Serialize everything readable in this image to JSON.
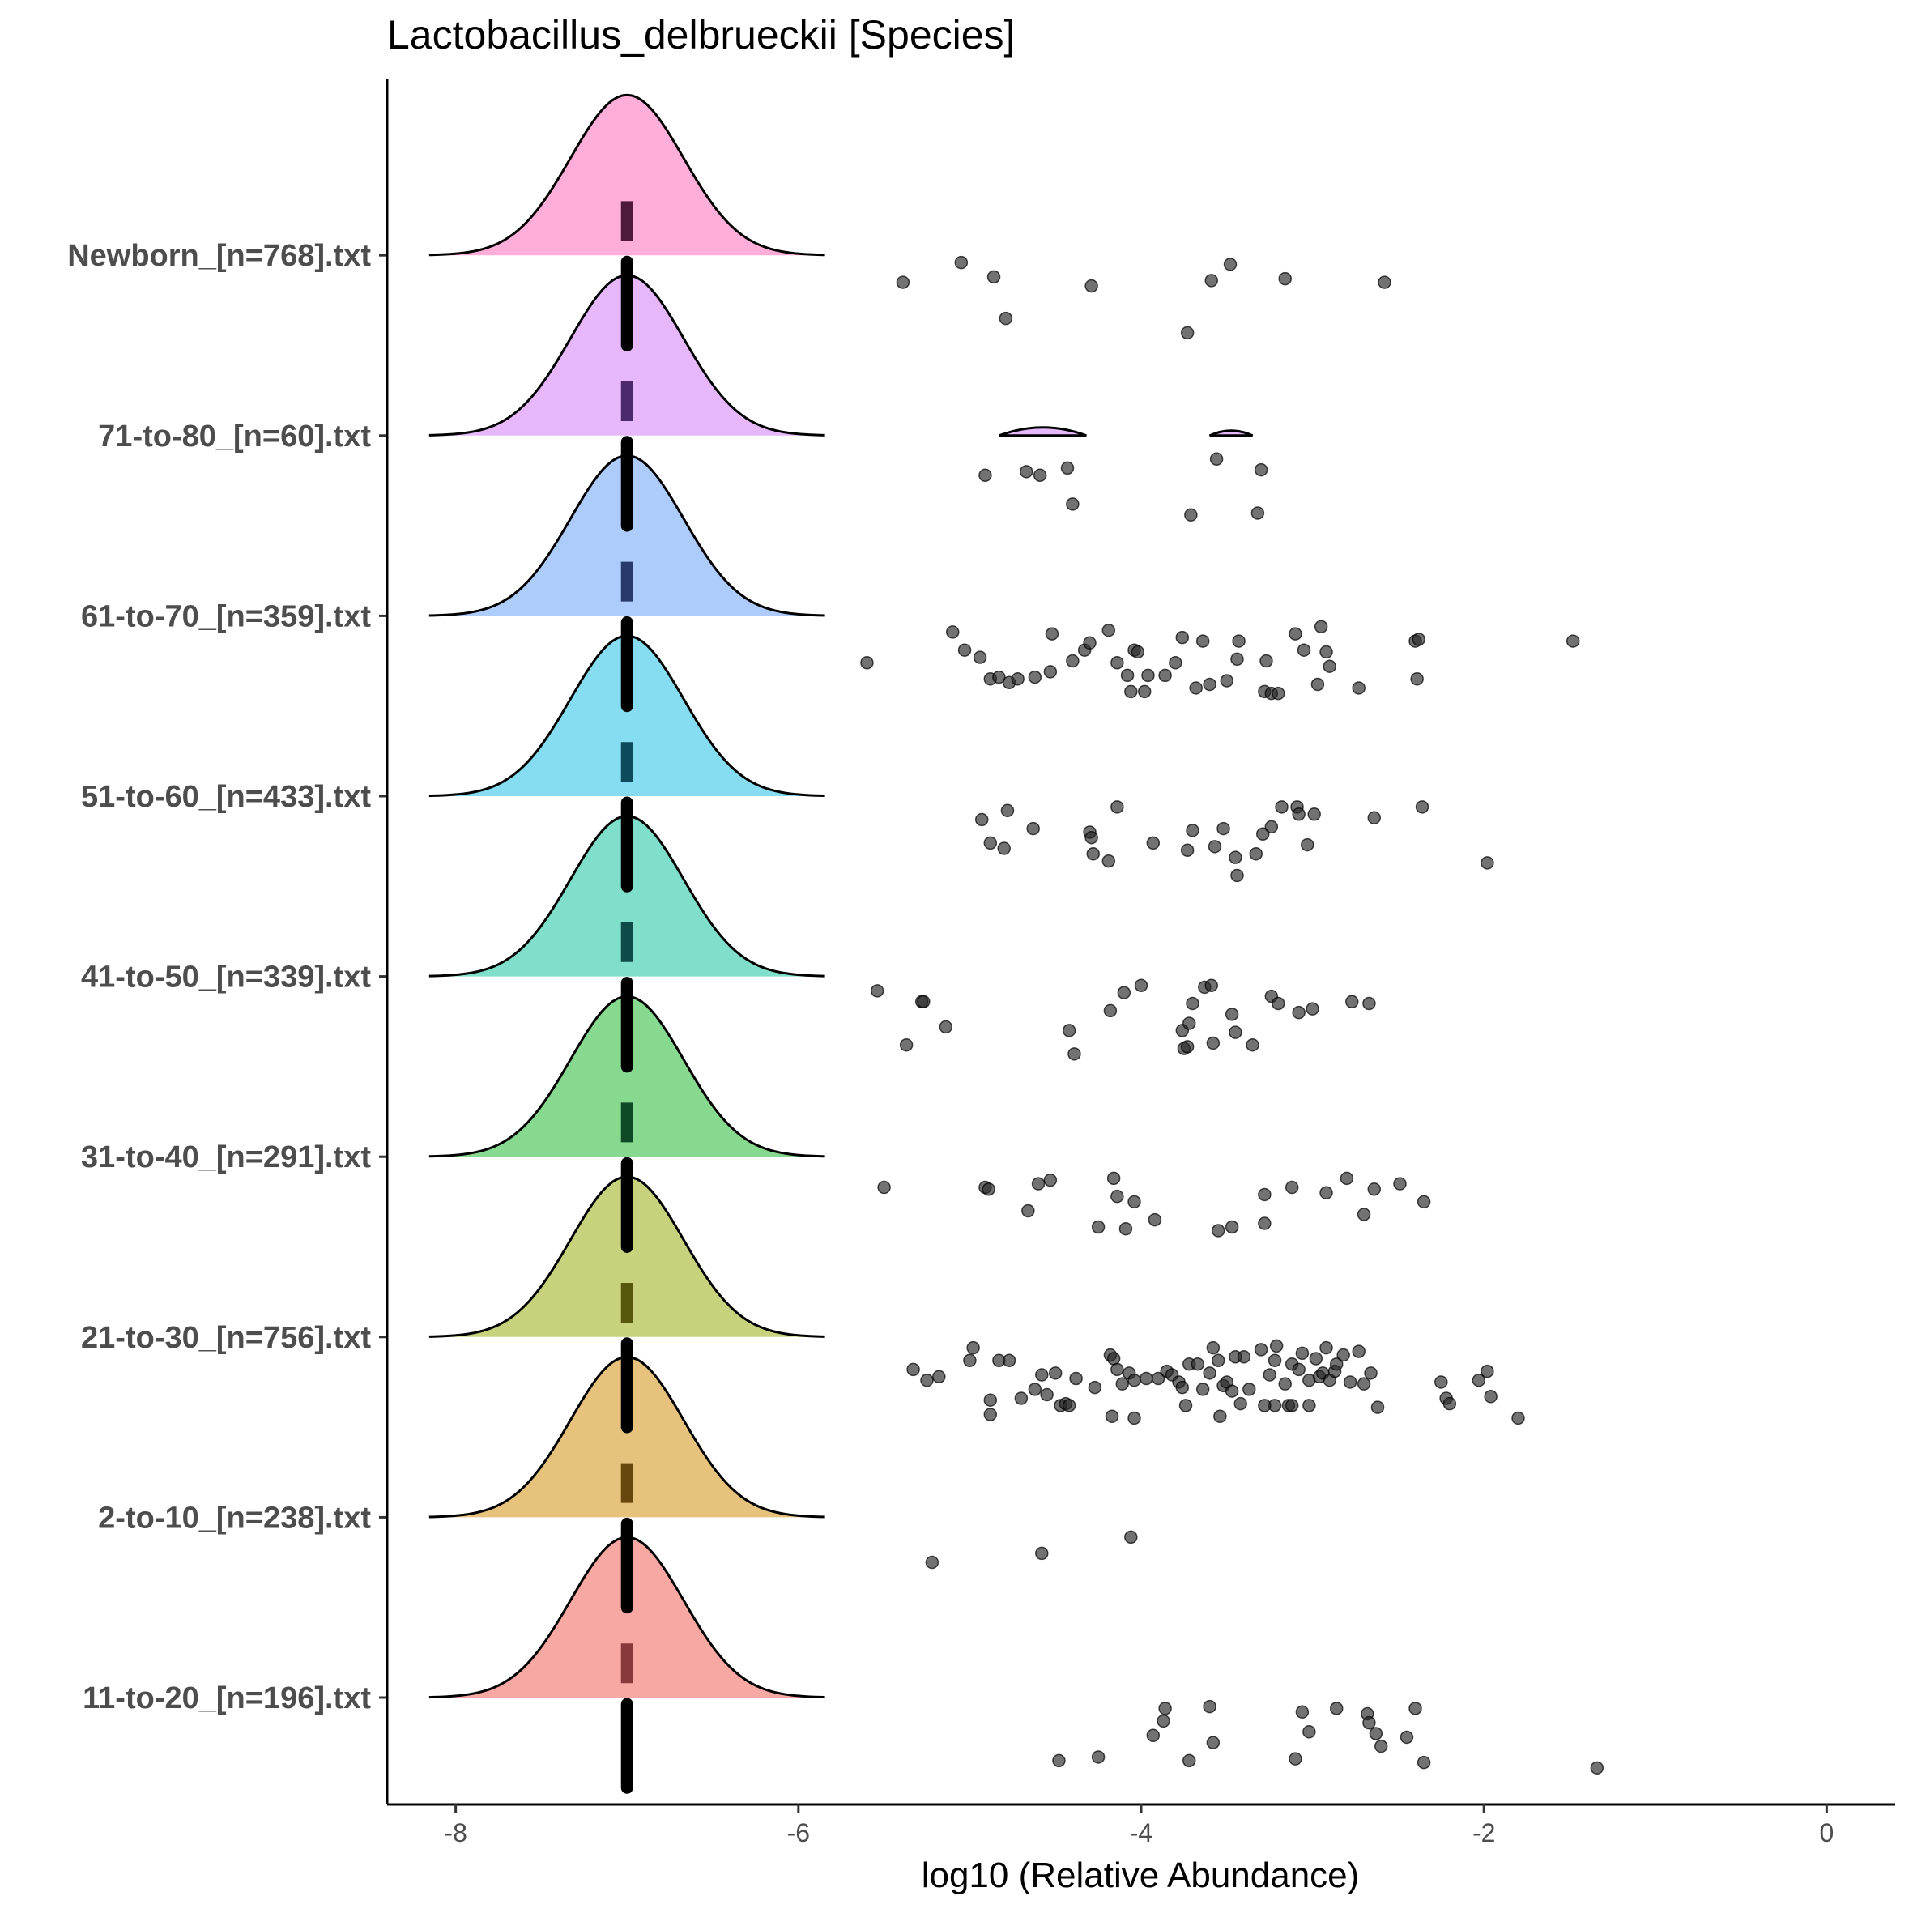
{
  "chart_data": {
    "type": "ridgeline-jitter",
    "title": "Lactobacillus_delbrueckii [Species]",
    "xlabel": "log10 (Relative Abundance)",
    "ylabel": "",
    "xlim": [
      -8.4,
      0.4
    ],
    "x_ticks": [
      -8,
      -6,
      -4,
      -2,
      0
    ],
    "x_tick_labels": [
      "-8",
      "-6",
      "-4",
      "-2",
      "0"
    ],
    "grid": false,
    "legend": "none",
    "categories": [
      "11-to-20_[n=196].txt",
      "2-to-10_[n=238].txt",
      "21-to-30_[n=756].txt",
      "31-to-40_[n=291].txt",
      "41-to-50_[n=339].txt",
      "51-to-60_[n=433].txt",
      "61-to-70_[n=359].txt",
      "71-to-80_[n=60].txt",
      "Newborn_[n=768].txt"
    ],
    "fill_colors": [
      "#F8766D",
      "#D89000",
      "#A3A500",
      "#39B600",
      "#00BF7D",
      "#00BFC4",
      "#00B0F6",
      "#9590FF",
      "#E76BF3",
      "#FF62BC"
    ],
    "density_center": -7.0,
    "density_sd": 0.33,
    "series": [
      {
        "name": "11-to-20_[n=196].txt",
        "fill": "#F8A8A3",
        "line": "#7a2e2e",
        "points": [
          [
            -4.48,
            -0.35
          ],
          [
            -4.25,
            -0.33
          ],
          [
            -3.86,
            -0.06
          ],
          [
            -3.87,
            -0.13
          ],
          [
            -3.93,
            -0.21
          ],
          [
            -3.72,
            -0.35
          ],
          [
            -3.6,
            -0.05
          ],
          [
            -3.58,
            -0.25
          ],
          [
            -3.1,
            -0.34
          ],
          [
            -3.06,
            -0.08
          ],
          [
            -3.02,
            -0.19
          ],
          [
            -2.86,
            -0.06
          ],
          [
            -2.68,
            -0.09
          ],
          [
            -2.67,
            -0.14
          ],
          [
            -2.63,
            -0.2
          ],
          [
            -2.6,
            -0.27
          ],
          [
            -2.45,
            -0.22
          ],
          [
            -2.4,
            -0.06
          ],
          [
            -2.35,
            -0.36
          ],
          [
            -1.34,
            -0.39
          ]
        ]
      },
      {
        "name": "2-to-10_[n=238].txt",
        "fill": "#E6C27D",
        "line": "#5a3a00",
        "points": [
          [
            -5.22,
            -0.25
          ],
          [
            -4.58,
            -0.2
          ],
          [
            -4.06,
            -0.11
          ]
        ]
      },
      {
        "name": "21-to-30_[n=756].txt",
        "fill": "#C8D27D",
        "line": "#4a4a00",
        "points": [
          [
            -5.33,
            -0.18
          ],
          [
            -5.25,
            -0.24
          ],
          [
            -5.18,
            -0.22
          ],
          [
            -4.98,
            -0.06
          ],
          [
            -5.0,
            -0.13
          ],
          [
            -4.88,
            -0.35
          ],
          [
            -4.88,
            -0.43
          ],
          [
            -4.83,
            -0.13
          ],
          [
            -4.77,
            -0.13
          ],
          [
            -4.7,
            -0.34
          ],
          [
            -4.62,
            -0.29
          ],
          [
            -4.58,
            -0.21
          ],
          [
            -4.55,
            -0.32
          ],
          [
            -4.5,
            -0.2
          ],
          [
            -4.47,
            -0.38
          ],
          [
            -4.44,
            -0.37
          ],
          [
            -4.42,
            -0.38
          ],
          [
            -4.38,
            -0.23
          ],
          [
            -4.27,
            -0.28
          ],
          [
            -4.18,
            -0.1
          ],
          [
            -4.16,
            -0.12
          ],
          [
            -4.14,
            -0.18
          ],
          [
            -4.11,
            -0.26
          ],
          [
            -4.07,
            -0.2
          ],
          [
            -4.04,
            -0.24
          ],
          [
            -4.17,
            -0.44
          ],
          [
            -4.04,
            -0.45
          ],
          [
            -3.97,
            -0.23
          ],
          [
            -3.9,
            -0.23
          ],
          [
            -3.85,
            -0.19
          ],
          [
            -3.82,
            -0.21
          ],
          [
            -3.78,
            -0.25
          ],
          [
            -3.76,
            -0.28
          ],
          [
            -3.74,
            -0.38
          ],
          [
            -3.72,
            -0.15
          ],
          [
            -3.67,
            -0.15
          ],
          [
            -3.64,
            -0.29
          ],
          [
            -3.6,
            -0.2
          ],
          [
            -3.58,
            -0.06
          ],
          [
            -3.55,
            -0.13
          ],
          [
            -3.52,
            -0.27
          ],
          [
            -3.54,
            -0.44
          ],
          [
            -3.5,
            -0.25
          ],
          [
            -3.45,
            -0.11
          ],
          [
            -3.42,
            -0.37
          ],
          [
            -3.37,
            -0.29
          ],
          [
            -3.3,
            -0.07
          ],
          [
            -3.25,
            -0.21
          ],
          [
            -3.22,
            -0.13
          ],
          [
            -3.21,
            -0.05
          ],
          [
            -3.16,
            -0.26
          ],
          [
            -3.14,
            -0.38
          ],
          [
            -3.12,
            -0.15
          ],
          [
            -3.08,
            -0.18
          ],
          [
            -3.06,
            -0.09
          ],
          [
            -3.02,
            -0.24
          ],
          [
            -2.98,
            -0.12
          ],
          [
            -2.96,
            -0.22
          ],
          [
            -2.94,
            -0.2
          ],
          [
            -2.92,
            -0.06
          ],
          [
            -2.9,
            -0.24
          ],
          [
            -2.87,
            -0.19
          ],
          [
            -2.86,
            -0.15
          ],
          [
            -2.82,
            -0.1
          ],
          [
            -2.78,
            -0.25
          ],
          [
            -2.73,
            -0.08
          ],
          [
            -2.7,
            -0.26
          ],
          [
            -2.66,
            -0.2
          ],
          [
            -2.62,
            -0.39
          ],
          [
            -3.02,
            -0.38
          ],
          [
            -3.12,
            -0.38
          ],
          [
            -3.22,
            -0.38
          ],
          [
            -3.28,
            -0.38
          ],
          [
            -3.4,
            -0.11
          ],
          [
            -3.47,
            -0.3
          ],
          [
            -2.25,
            -0.25
          ],
          [
            -2.22,
            -0.34
          ],
          [
            -2.2,
            -0.37
          ],
          [
            -2.03,
            -0.24
          ],
          [
            -1.98,
            -0.19
          ],
          [
            -1.96,
            -0.33
          ],
          [
            -1.8,
            -0.45
          ]
        ]
      },
      {
        "name": "31-to-40_[n=291].txt",
        "fill": "#86D98F",
        "line": "#003a1a",
        "points": [
          [
            -5.5,
            -0.17
          ],
          [
            -4.91,
            -0.17
          ],
          [
            -4.89,
            -0.18
          ],
          [
            -4.66,
            -0.3
          ],
          [
            -4.6,
            -0.15
          ],
          [
            -4.53,
            -0.13
          ],
          [
            -4.25,
            -0.39
          ],
          [
            -4.16,
            -0.12
          ],
          [
            -4.14,
            -0.22
          ],
          [
            -4.09,
            -0.4
          ],
          [
            -4.04,
            -0.25
          ],
          [
            -3.92,
            -0.35
          ],
          [
            -3.55,
            -0.41
          ],
          [
            -3.47,
            -0.39
          ],
          [
            -3.28,
            -0.37
          ],
          [
            -3.28,
            -0.21
          ],
          [
            -3.12,
            -0.17
          ],
          [
            -2.92,
            -0.2
          ],
          [
            -2.8,
            -0.12
          ],
          [
            -2.7,
            -0.32
          ],
          [
            -2.64,
            -0.18
          ],
          [
            -2.49,
            -0.15
          ],
          [
            -2.35,
            -0.25
          ]
        ]
      },
      {
        "name": "41-to-50_[n=339].txt",
        "fill": "#80DFCB",
        "line": "#003a3a",
        "points": [
          [
            -5.54,
            -0.08
          ],
          [
            -5.28,
            -0.14
          ],
          [
            -5.27,
            -0.14
          ],
          [
            -5.14,
            -0.28
          ],
          [
            -5.37,
            -0.38
          ],
          [
            -4.42,
            -0.3
          ],
          [
            -4.39,
            -0.43
          ],
          [
            -4.18,
            -0.19
          ],
          [
            -4.1,
            -0.09
          ],
          [
            -4.0,
            -0.05
          ],
          [
            -3.76,
            -0.3
          ],
          [
            -3.75,
            -0.4
          ],
          [
            -3.7,
            -0.15
          ],
          [
            -3.63,
            -0.06
          ],
          [
            -3.59,
            -0.05
          ],
          [
            -3.58,
            -0.37
          ],
          [
            -3.47,
            -0.21
          ],
          [
            -3.45,
            -0.31
          ],
          [
            -3.35,
            -0.38
          ],
          [
            -3.24,
            -0.11
          ],
          [
            -3.2,
            -0.15
          ],
          [
            -3.08,
            -0.2
          ],
          [
            -3.0,
            -0.18
          ],
          [
            -2.77,
            -0.14
          ],
          [
            -2.67,
            -0.15
          ],
          [
            -3.72,
            -0.26
          ],
          [
            -3.73,
            -0.39
          ]
        ]
      },
      {
        "name": "51-to-60_[n=433].txt",
        "fill": "#86DDF2",
        "line": "#003a4a",
        "points": [
          [
            -4.93,
            -0.13
          ],
          [
            -4.78,
            -0.08
          ],
          [
            -4.88,
            -0.26
          ],
          [
            -4.8,
            -0.29
          ],
          [
            -4.63,
            -0.18
          ],
          [
            -4.3,
            -0.2
          ],
          [
            -4.29,
            -0.23
          ],
          [
            -4.28,
            -0.32
          ],
          [
            -4.19,
            -0.36
          ],
          [
            -4.14,
            -0.06
          ],
          [
            -3.93,
            -0.26
          ],
          [
            -3.73,
            -0.3
          ],
          [
            -3.7,
            -0.19
          ],
          [
            -3.57,
            -0.28
          ],
          [
            -3.52,
            -0.18
          ],
          [
            -3.45,
            -0.34
          ],
          [
            -3.44,
            -0.44
          ],
          [
            -3.33,
            -0.32
          ],
          [
            -3.29,
            -0.21
          ],
          [
            -3.24,
            -0.17
          ],
          [
            -3.18,
            -0.06
          ],
          [
            -3.09,
            -0.06
          ],
          [
            -3.08,
            -0.1
          ],
          [
            -3.03,
            -0.27
          ],
          [
            -2.99,
            -0.1
          ],
          [
            -2.64,
            -0.12
          ],
          [
            -2.36,
            -0.06
          ],
          [
            -1.98,
            -0.37
          ]
        ]
      },
      {
        "name": "61-to-70_[n=359].txt",
        "fill": "#ADCBFB",
        "line": "#1a2a5a",
        "points": [
          [
            -5.6,
            -0.26
          ],
          [
            -5.1,
            -0.09
          ],
          [
            -5.03,
            -0.19
          ],
          [
            -4.94,
            -0.23
          ],
          [
            -4.88,
            -0.35
          ],
          [
            -4.83,
            -0.34
          ],
          [
            -4.77,
            -0.37
          ],
          [
            -4.72,
            -0.35
          ],
          [
            -4.62,
            -0.34
          ],
          [
            -4.53,
            -0.31
          ],
          [
            -4.52,
            -0.1
          ],
          [
            -4.33,
            -0.19
          ],
          [
            -4.3,
            -0.15
          ],
          [
            -4.19,
            -0.08
          ],
          [
            -4.14,
            -0.26
          ],
          [
            -4.08,
            -0.33
          ],
          [
            -4.06,
            -0.42
          ],
          [
            -4.04,
            -0.19
          ],
          [
            -4.02,
            -0.2
          ],
          [
            -3.98,
            -0.42
          ],
          [
            -3.96,
            -0.33
          ],
          [
            -3.86,
            -0.33
          ],
          [
            -3.8,
            -0.26
          ],
          [
            -3.76,
            -0.12
          ],
          [
            -3.68,
            -0.4
          ],
          [
            -3.64,
            -0.14
          ],
          [
            -3.6,
            -0.38
          ],
          [
            -3.5,
            -0.36
          ],
          [
            -3.44,
            -0.24
          ],
          [
            -3.43,
            -0.14
          ],
          [
            -3.28,
            -0.42
          ],
          [
            -3.27,
            -0.25
          ],
          [
            -3.24,
            -0.43
          ],
          [
            -3.2,
            -0.43
          ],
          [
            -3.1,
            -0.1
          ],
          [
            -3.05,
            -0.19
          ],
          [
            -2.97,
            -0.38
          ],
          [
            -2.95,
            -0.06
          ],
          [
            -2.92,
            -0.2
          ],
          [
            -2.9,
            -0.28
          ],
          [
            -2.73,
            -0.4
          ],
          [
            -2.4,
            -0.14
          ],
          [
            -2.38,
            -0.13
          ],
          [
            -2.39,
            -0.35
          ],
          [
            -1.48,
            -0.14
          ],
          [
            -4.4,
            -0.25
          ]
        ]
      },
      {
        "name": "71-to-80_[n=60].txt",
        "fill": "#E6B8FB",
        "line": "#3a1a5a",
        "points": [
          [
            -4.91,
            -0.22
          ],
          [
            -4.67,
            -0.2
          ],
          [
            -4.59,
            -0.22
          ],
          [
            -4.43,
            -0.18
          ],
          [
            -4.4,
            -0.38
          ],
          [
            -3.71,
            -0.44
          ],
          [
            -3.56,
            -0.13
          ],
          [
            -3.3,
            -0.19
          ],
          [
            -3.32,
            -0.43
          ]
        ],
        "tails": [
          [
            -4.83,
            -4.32
          ],
          [
            -3.6,
            -3.35
          ]
        ]
      },
      {
        "name": "Newborn_[n=768].txt",
        "fill": "#FFAED9",
        "line": "#3a0a2a",
        "points": [
          [
            -5.39,
            -0.15
          ],
          [
            -5.05,
            -0.04
          ],
          [
            -4.86,
            -0.12
          ],
          [
            -4.79,
            -0.35
          ],
          [
            -4.29,
            -0.17
          ],
          [
            -3.73,
            -0.43
          ],
          [
            -3.59,
            -0.14
          ],
          [
            -3.48,
            -0.05
          ],
          [
            -3.16,
            -0.13
          ],
          [
            -2.58,
            -0.15
          ]
        ]
      }
    ]
  }
}
